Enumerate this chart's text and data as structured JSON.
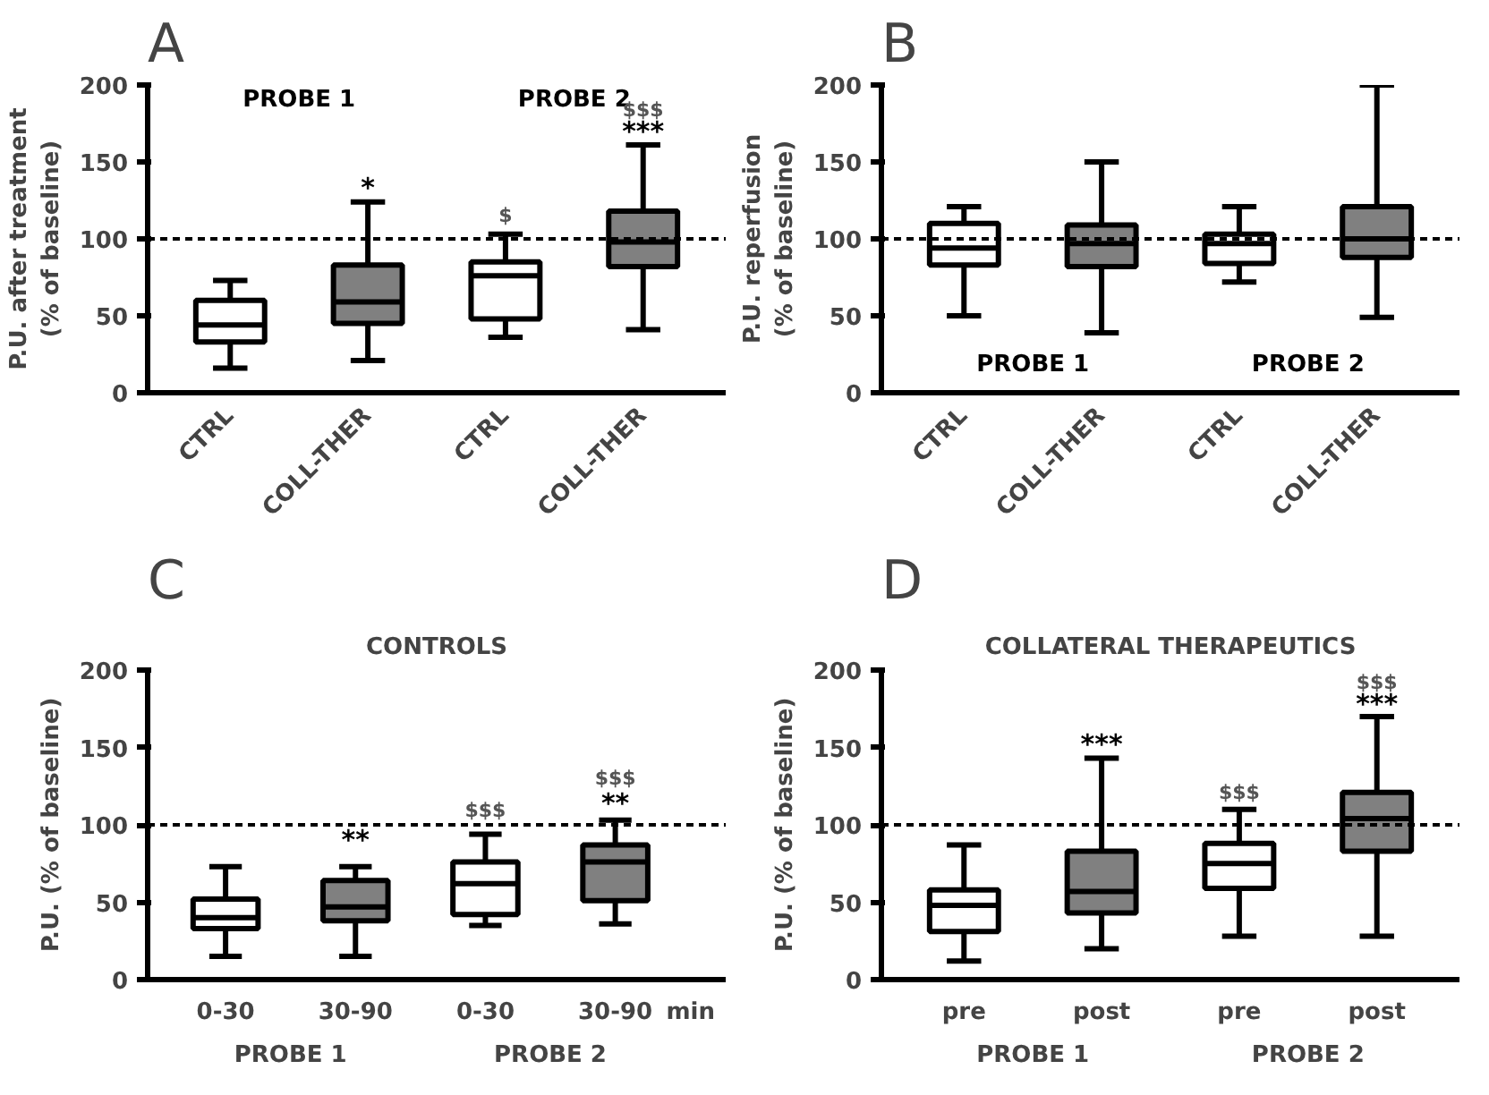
{
  "chart_data": [
    {
      "type": "box",
      "title": "A",
      "ylabel": "P.U. after treatment\n(% of baseline)",
      "categories": [
        "CTRL",
        "COLL-THER",
        "CTRL",
        "COLL-THER"
      ],
      "boxes": [
        {
          "low": 16,
          "q1": 33,
          "median": 44,
          "q3": 60,
          "high": 73
        },
        {
          "low": 21,
          "q1": 45,
          "median": 59,
          "q3": 83,
          "high": 124
        },
        {
          "low": 36,
          "q1": 48,
          "median": 76,
          "q3": 85,
          "high": 103
        },
        {
          "low": 41,
          "q1": 82,
          "median": 98,
          "q3": 118,
          "high": 161
        }
      ],
      "colors": [
        "#ffffff",
        "#808080",
        "#ffffff",
        "#808080"
      ],
      "ylim": [
        0,
        200
      ],
      "yticks": [
        0,
        50,
        100,
        150,
        200
      ],
      "grid": false,
      "legend": false,
      "ref_lines": [
        {
          "axis": "y",
          "value": 100,
          "line_style": "dashed"
        }
      ],
      "annotations": [
        "PROBE 1",
        "PROBE 2",
        "*",
        "$",
        "***",
        "$$$"
      ]
    },
    {
      "type": "box",
      "title": "B",
      "ylabel": "P.U. reperfusion\n(% of baseline)",
      "categories": [
        "CTRL",
        "COLL-THER",
        "CTRL",
        "COLL-THER"
      ],
      "boxes": [
        {
          "low": 50,
          "q1": 83,
          "median": 94,
          "q3": 110,
          "high": 121
        },
        {
          "low": 39,
          "q1": 82,
          "median": 97,
          "q3": 109,
          "high": 150
        },
        {
          "low": 72,
          "q1": 84,
          "median": 97,
          "q3": 103,
          "high": 121
        },
        {
          "low": 49,
          "q1": 88,
          "median": 100,
          "q3": 121,
          "high": 200
        }
      ],
      "colors": [
        "#ffffff",
        "#808080",
        "#ffffff",
        "#808080"
      ],
      "ylim": [
        0,
        200
      ],
      "yticks": [
        0,
        50,
        100,
        150,
        200
      ],
      "grid": false,
      "legend": false,
      "ref_lines": [
        {
          "axis": "y",
          "value": 100,
          "line_style": "dashed"
        }
      ],
      "annotations": [
        "PROBE 1",
        "PROBE 2"
      ]
    },
    {
      "type": "box",
      "title": "C",
      "subtitle": "CONTROLS",
      "ylabel": "P.U. (% of baseline)",
      "categories": [
        "0-30",
        "30-90",
        "0-30",
        "30-90"
      ],
      "boxes": [
        {
          "low": 15,
          "q1": 33,
          "median": 40,
          "q3": 52,
          "high": 73
        },
        {
          "low": 15,
          "q1": 38,
          "median": 47,
          "q3": 64,
          "high": 73
        },
        {
          "low": 35,
          "q1": 42,
          "median": 62,
          "q3": 76,
          "high": 94
        },
        {
          "low": 36,
          "q1": 51,
          "median": 76,
          "q3": 87,
          "high": 103
        }
      ],
      "colors": [
        "#ffffff",
        "#808080",
        "#ffffff",
        "#808080"
      ],
      "ylim": [
        0,
        200
      ],
      "yticks": [
        0,
        50,
        100,
        150,
        200
      ],
      "grid": false,
      "legend": false,
      "ref_lines": [
        {
          "axis": "y",
          "value": 100,
          "line_style": "dashed"
        }
      ],
      "annotations": [
        "PROBE 1",
        "PROBE 2",
        "min",
        "**",
        "$$$",
        "**",
        "$$$"
      ]
    },
    {
      "type": "box",
      "title": "D",
      "subtitle": "COLLATERAL THERAPEUTICS",
      "ylabel": "P.U. (% of baseline)",
      "categories": [
        "pre",
        "post",
        "pre",
        "post"
      ],
      "boxes": [
        {
          "low": 12,
          "q1": 31,
          "median": 48,
          "q3": 58,
          "high": 87
        },
        {
          "low": 20,
          "q1": 43,
          "median": 57,
          "q3": 83,
          "high": 143
        },
        {
          "low": 28,
          "q1": 59,
          "median": 75,
          "q3": 88,
          "high": 110
        },
        {
          "low": 28,
          "q1": 83,
          "median": 104,
          "q3": 121,
          "high": 170
        }
      ],
      "colors": [
        "#ffffff",
        "#808080",
        "#ffffff",
        "#808080"
      ],
      "ylim": [
        0,
        200
      ],
      "yticks": [
        0,
        50,
        100,
        150,
        200
      ],
      "grid": false,
      "legend": false,
      "ref_lines": [
        {
          "axis": "y",
          "value": 100,
          "line_style": "dashed"
        }
      ],
      "annotations": [
        "PROBE 1",
        "PROBE 2",
        "***",
        "$$$",
        "***",
        "$$$"
      ]
    }
  ]
}
